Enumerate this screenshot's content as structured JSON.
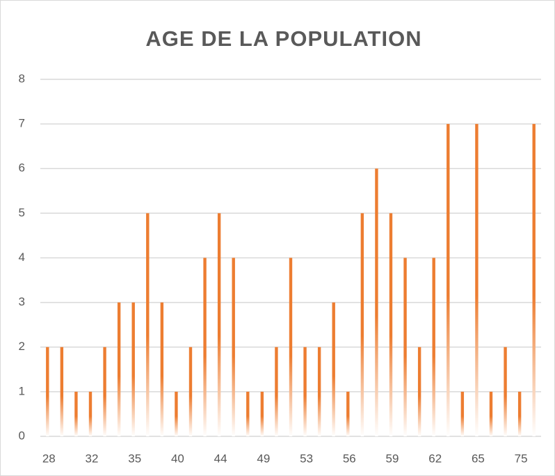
{
  "chart_data": {
    "type": "bar",
    "title": "AGE DE LA POPULATION",
    "categories": [
      "28",
      null,
      null,
      "32",
      null,
      null,
      "35",
      null,
      null,
      "40",
      null,
      null,
      "44",
      null,
      null,
      "49",
      null,
      null,
      "53",
      null,
      null,
      "56",
      null,
      null,
      "59",
      null,
      null,
      "62",
      null,
      null,
      "65",
      null,
      null,
      "75",
      null
    ],
    "values": [
      2,
      2,
      1,
      1,
      2,
      3,
      3,
      5,
      3,
      1,
      2,
      4,
      5,
      4,
      1,
      1,
      2,
      4,
      2,
      2,
      3,
      1,
      5,
      6,
      5,
      4,
      2,
      4,
      7,
      1,
      7,
      1,
      2,
      1,
      7
    ],
    "color": "#ed7d31",
    "ylim": [
      0,
      8
    ],
    "yticks": [
      0,
      1,
      2,
      3,
      4,
      5,
      6,
      7,
      8
    ],
    "grid": true
  }
}
